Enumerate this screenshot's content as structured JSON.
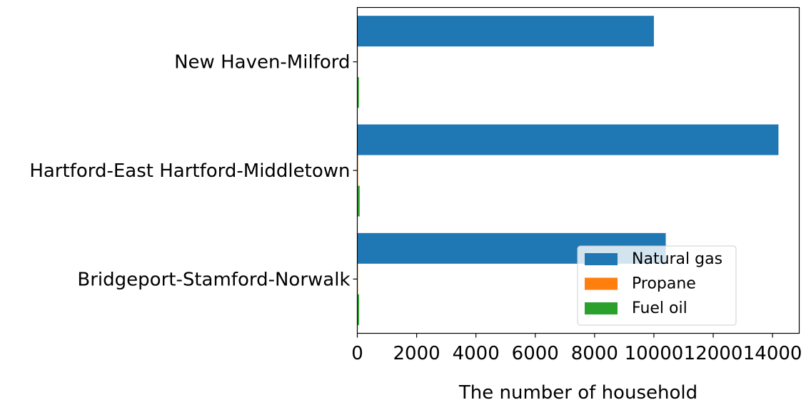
{
  "chart_data": {
    "type": "bar",
    "orientation": "horizontal",
    "categories": [
      "Bridgeport-Stamford-Norwalk",
      "Hartford-East Hartford-Middletown",
      "New Haven-Milford"
    ],
    "series": [
      {
        "name": "Natural gas",
        "values": [
          10400,
          14200,
          10000
        ],
        "color": "#1f77b4"
      },
      {
        "name": "Propane",
        "values": [
          20,
          25,
          15
        ],
        "color": "#ff7f0e"
      },
      {
        "name": "Fuel oil",
        "values": [
          60,
          80,
          55
        ],
        "color": "#2ca02c"
      }
    ],
    "xlabel": "The number of household",
    "ylabel": "",
    "xlim": [
      0,
      14900
    ],
    "xticks": [
      0,
      2000,
      4000,
      6000,
      8000,
      10000,
      12000,
      14000
    ],
    "grid": false,
    "legend_position": "lower right"
  }
}
